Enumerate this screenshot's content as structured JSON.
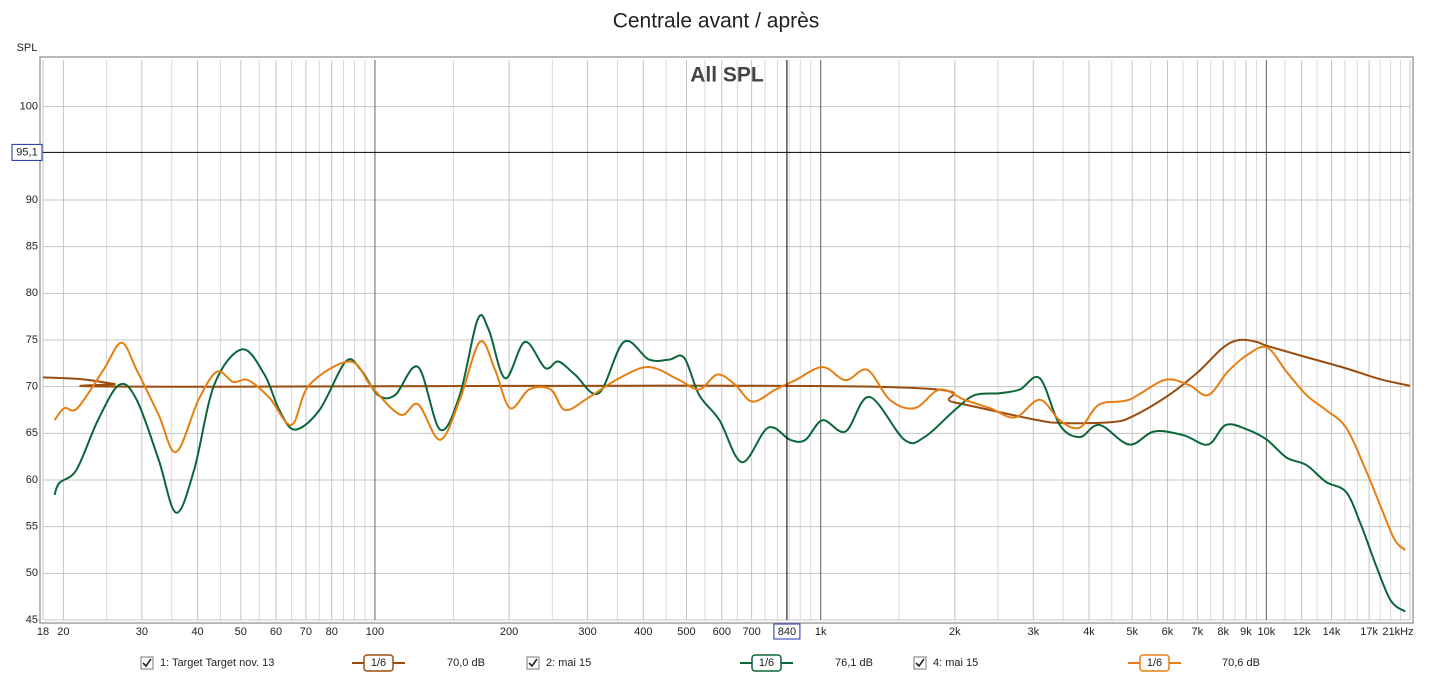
{
  "chart_data": {
    "type": "line",
    "title": "Centrale avant / après",
    "plot_title": "All SPL",
    "ylabel": "SPL",
    "log_x": true,
    "grid": true,
    "xlim": [
      18,
      21000
    ],
    "ylim": [
      45,
      105
    ],
    "yticks": [
      45,
      50,
      55,
      60,
      65,
      70,
      75,
      80,
      85,
      90,
      100
    ],
    "xticks": [
      18,
      20,
      30,
      40,
      50,
      60,
      70,
      80,
      100,
      200,
      300,
      400,
      500,
      600,
      700,
      {
        "value": 1000,
        "label": "1k"
      },
      {
        "value": 2000,
        "label": "2k"
      },
      {
        "value": 3000,
        "label": "3k"
      },
      {
        "value": 4000,
        "label": "4k"
      },
      {
        "value": 5000,
        "label": "5k"
      },
      {
        "value": 6000,
        "label": "6k"
      },
      {
        "value": 7000,
        "label": "7k"
      },
      {
        "value": 8000,
        "label": "8k"
      },
      {
        "value": 9000,
        "label": "9k"
      },
      {
        "value": 10000,
        "label": "10k"
      },
      {
        "value": 12000,
        "label": "12k"
      },
      {
        "value": 14000,
        "label": "14k"
      },
      {
        "value": 17000,
        "label": "17k"
      },
      {
        "value": 21000,
        "label": "21kHz"
      }
    ],
    "xminorticks": [
      25,
      35,
      45,
      55,
      65,
      75,
      85,
      90,
      95,
      150,
      250,
      350,
      450,
      550,
      650,
      750,
      800,
      850,
      900,
      950,
      1500,
      2500,
      3500,
      4500,
      5500,
      6500,
      7500,
      8500,
      9500,
      11000,
      13000,
      15000,
      16000,
      18000,
      19000,
      20000
    ],
    "xmajorlines": [
      100,
      1000,
      10000
    ],
    "cursor": {
      "x": {
        "value": 840,
        "label": "840"
      },
      "y": {
        "value": 95.1,
        "label": "95,1"
      }
    },
    "series": [
      {
        "name": "1: Target Target nov. 13",
        "color": "#9a4d0e",
        "smoothing": "1/6",
        "level": "70,0 dB",
        "x": [
          18,
          22,
          26,
          30,
          1300,
          2000,
          3000,
          3500,
          4500,
          5000,
          6000,
          7000,
          8000,
          8700,
          9500,
          10000,
          12000,
          15000,
          18000,
          21000
        ],
        "values": [
          71,
          70.8,
          70.3,
          70,
          70,
          68.3,
          66.5,
          66.1,
          66.2,
          66.8,
          69,
          71.5,
          74.2,
          75,
          74.8,
          74.4,
          73.3,
          72,
          70.8,
          70.1
        ]
      },
      {
        "name": "2: mai 15",
        "color": "#0b6639",
        "smoothing": "1/6",
        "level": "76,1 dB",
        "x": [
          19.1,
          19.6,
          21.4,
          23.9,
          26.7,
          29.2,
          32.7,
          35.8,
          39.3,
          43.6,
          50.3,
          56.5,
          61,
          66.1,
          75.1,
          86,
          93,
          101.6,
          111,
          125,
          140,
          155,
          170,
          180,
          196,
          217,
          241,
          258,
          281,
          318,
          362,
          412,
          457,
          494,
          534,
          593,
          666,
          762,
          855,
          924,
          1010,
          1137,
          1286,
          1542,
          1710,
          2000,
          2216,
          2524,
          2799,
          3102,
          3438,
          3810,
          4222,
          4923,
          5598,
          6516,
          7400,
          8110,
          9060,
          10030,
          11100,
          12300,
          13600,
          15100,
          16300,
          17600,
          19000,
          20500
        ],
        "values": [
          58.4,
          59.7,
          61.1,
          66.4,
          70.2,
          68.6,
          62.2,
          56.5,
          61.1,
          70.2,
          74,
          71.3,
          67.5,
          65.4,
          67.5,
          72.7,
          71.8,
          69.1,
          69.1,
          72.1,
          65.4,
          69.1,
          77.2,
          76.1,
          70.9,
          74.8,
          72,
          72.7,
          71.3,
          69.3,
          74.8,
          72.9,
          72.9,
          73.1,
          69.1,
          66.4,
          61.9,
          65.6,
          64.3,
          64.3,
          66.4,
          65.2,
          68.9,
          64.3,
          64.6,
          67.5,
          69.1,
          69.3,
          69.7,
          70.9,
          65.9,
          64.6,
          65.9,
          63.8,
          65.2,
          64.8,
          63.8,
          65.9,
          65.4,
          64.3,
          62.4,
          61.6,
          59.8,
          58.7,
          55.2,
          50.9,
          47.1,
          45.9
        ]
      },
      {
        "name": "4: mai 15",
        "color": "#e67e12",
        "smoothing": "1/6",
        "level": "70,6 dB",
        "x": [
          19.1,
          20.1,
          21.5,
          24.6,
          27,
          29.2,
          32.7,
          35.8,
          40.2,
          44.2,
          48.1,
          51.9,
          58,
          65,
          71.3,
          88,
          98.6,
          114,
          125,
          140,
          155,
          172,
          186,
          201,
          222,
          248,
          267,
          301,
          353,
          412,
          482,
          534,
          587,
          643,
          703,
          792,
          878,
          1010,
          1137,
          1273,
          1429,
          1626,
          1850,
          2100,
          2400,
          2730,
          3100,
          3438,
          3810,
          4222,
          4923,
          5900,
          6690,
          7400,
          8190,
          9060,
          10030,
          11100,
          12300,
          13600,
          15100,
          16700,
          18000,
          19400,
          20500
        ],
        "values": [
          66.4,
          67.7,
          67.7,
          71.8,
          74.7,
          71.8,
          67,
          63,
          68.6,
          71.6,
          70.5,
          70.7,
          68.8,
          65.9,
          70.2,
          72.7,
          69.9,
          67,
          68.1,
          64.3,
          68.6,
          74.8,
          71.8,
          67.7,
          69.7,
          69.7,
          67.5,
          68.8,
          70.9,
          72.1,
          70.7,
          69.7,
          71.3,
          70.2,
          68.4,
          69.7,
          70.7,
          72.1,
          70.7,
          71.8,
          68.6,
          67.7,
          69.7,
          68.6,
          67.7,
          66.7,
          68.6,
          66.4,
          65.6,
          68.1,
          68.6,
          70.7,
          70.2,
          69.1,
          71.6,
          73.4,
          74.2,
          71.6,
          69.1,
          67.5,
          65.6,
          61.1,
          57.3,
          53.6,
          52.5
        ]
      }
    ]
  }
}
